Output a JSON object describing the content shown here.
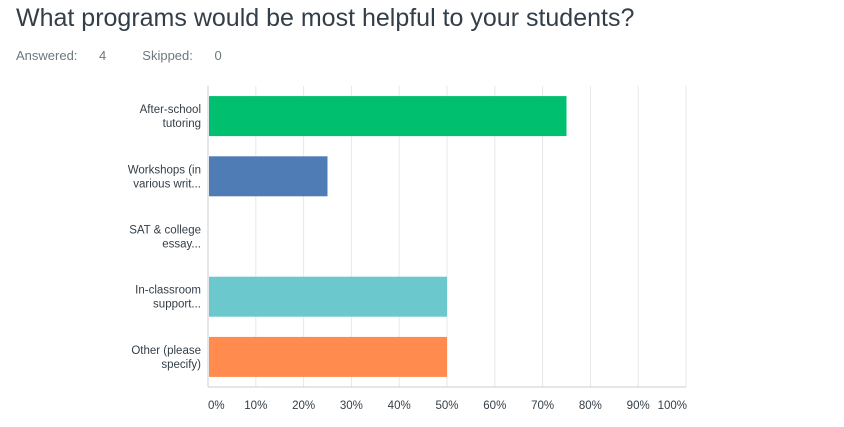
{
  "question": {
    "title": "What programs would be most helpful to your students?",
    "answered_label": "Answered:",
    "answered_count": "4",
    "skipped_label": "Skipped:",
    "skipped_count": "0"
  },
  "chart_data": {
    "type": "bar",
    "orientation": "horizontal",
    "categories": [
      [
        "After-school",
        "tutoring"
      ],
      [
        "Workshops (in",
        "various writ..."
      ],
      [
        "SAT & college",
        "essay..."
      ],
      [
        "In-classroom",
        "support..."
      ],
      [
        "Other (please",
        "specify)"
      ]
    ],
    "values": [
      75,
      25,
      0,
      50,
      50
    ],
    "colors": [
      "#00bf6f",
      "#507cb6",
      "#f9be00",
      "#6bc8cd",
      "#ff8b4f"
    ],
    "xlim": [
      0,
      100
    ],
    "xticks": [
      "0%",
      "10%",
      "20%",
      "30%",
      "40%",
      "50%",
      "60%",
      "70%",
      "80%",
      "90%",
      "100%"
    ],
    "grid": true
  }
}
